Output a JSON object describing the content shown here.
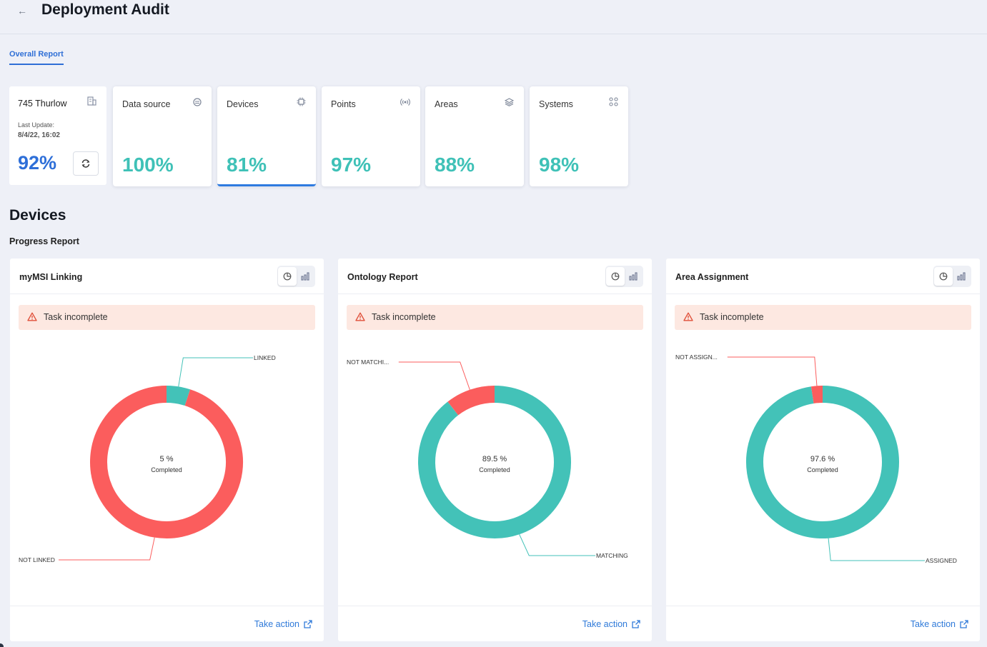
{
  "header": {
    "title": "Deployment Audit"
  },
  "tabs": [
    {
      "label": "Overall Report"
    }
  ],
  "site": {
    "name": "745 Thurlow",
    "last_update_label": "Last Update:",
    "last_update_value": "8/4/22, 16:02",
    "percent": "92%"
  },
  "metrics": [
    {
      "label": "Data source",
      "value": "100%",
      "icon": "database-icon"
    },
    {
      "label": "Devices",
      "value": "81%",
      "icon": "chip-icon"
    },
    {
      "label": "Points",
      "value": "97%",
      "icon": "signal-icon"
    },
    {
      "label": "Areas",
      "value": "88%",
      "icon": "layers-icon"
    },
    {
      "label": "Systems",
      "value": "98%",
      "icon": "grid-nodes-icon"
    }
  ],
  "section": {
    "title": "Devices",
    "subtitle": "Progress Report"
  },
  "colors": {
    "teal": "#43c2b8",
    "red": "#fb5d5d",
    "accent": "#2f6fd6"
  },
  "panels": [
    {
      "title": "myMSI Linking",
      "alert": "Task incomplete",
      "center_value": "5 %",
      "center_label": "Completed",
      "action": "Take action"
    },
    {
      "title": "Ontology Report",
      "alert": "Task incomplete",
      "center_value": "89.5 %",
      "center_label": "Completed",
      "action": "Take action"
    },
    {
      "title": "Area Assignment",
      "alert": "Task incomplete",
      "center_value": "97.6 %",
      "center_label": "Completed",
      "action": "Take action"
    }
  ],
  "chart_data": [
    {
      "type": "pie",
      "title": "myMSI Linking",
      "categories": [
        "LINKED",
        "NOT LINKED"
      ],
      "values": [
        5,
        95
      ],
      "colors": [
        "#43c2b8",
        "#fb5d5d"
      ]
    },
    {
      "type": "pie",
      "title": "Ontology Report",
      "categories": [
        "MATCHING",
        "NOT MATCHI..."
      ],
      "values": [
        89.5,
        10.5
      ],
      "colors": [
        "#43c2b8",
        "#fb5d5d"
      ]
    },
    {
      "type": "pie",
      "title": "Area Assignment",
      "categories": [
        "ASSIGNED",
        "NOT ASSIGN..."
      ],
      "values": [
        97.6,
        2.4
      ],
      "colors": [
        "#43c2b8",
        "#fb5d5d"
      ]
    }
  ]
}
